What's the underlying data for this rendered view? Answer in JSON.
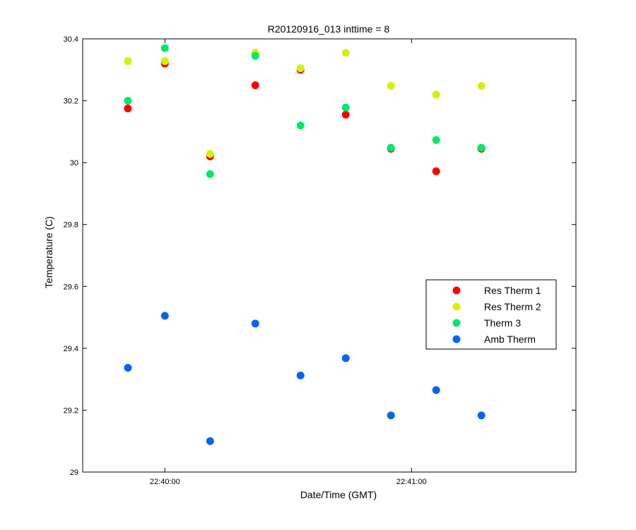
{
  "chart_data": {
    "type": "scatter",
    "title": "R20120916_013 inttime = 8",
    "xlabel": "Date/Time (GMT)",
    "ylabel": "Temperature (C)",
    "xlim": [
      "22:39:40",
      "22:41:40"
    ],
    "ylim": [
      29,
      30.4
    ],
    "x_ticks": [
      {
        "value": "22:40:00",
        "label": "22:40:00"
      },
      {
        "value": "22:41:00",
        "label": "22:41:00"
      }
    ],
    "y_ticks": [
      29,
      29.2,
      29.4,
      29.6,
      29.8,
      30,
      30.2,
      30.4
    ],
    "y_tick_labels": [
      "29",
      "29.2",
      "29.4",
      "29.6",
      "29.8",
      "30",
      "30.2",
      "30.4"
    ],
    "grid": false,
    "legend_position": "right",
    "x": [
      "22:39:51",
      "22:40:00",
      "22:40:11",
      "22:40:22",
      "22:40:33",
      "22:40:44",
      "22:40:55",
      "22:41:06",
      "22:41:17"
    ],
    "series": [
      {
        "name": "Res Therm 1",
        "color": "#ff0000",
        "values": [
          30.175,
          30.32,
          30.02,
          30.25,
          30.3,
          30.155,
          30.045,
          29.972,
          30.045
        ]
      },
      {
        "name": "Res Therm 2",
        "color": "#d8f000",
        "values": [
          30.328,
          30.328,
          30.028,
          30.355,
          30.305,
          30.355,
          30.248,
          30.22,
          30.248
        ]
      },
      {
        "name": "Therm 3",
        "color": "#00e868",
        "values": [
          30.2,
          30.37,
          29.963,
          30.345,
          30.12,
          30.178,
          30.048,
          30.073,
          30.048
        ]
      },
      {
        "name": "Amb Therm",
        "color": "#0a64f0",
        "values": [
          29.337,
          29.505,
          29.1,
          29.48,
          29.312,
          29.368,
          29.183,
          29.265,
          29.183
        ]
      }
    ]
  }
}
